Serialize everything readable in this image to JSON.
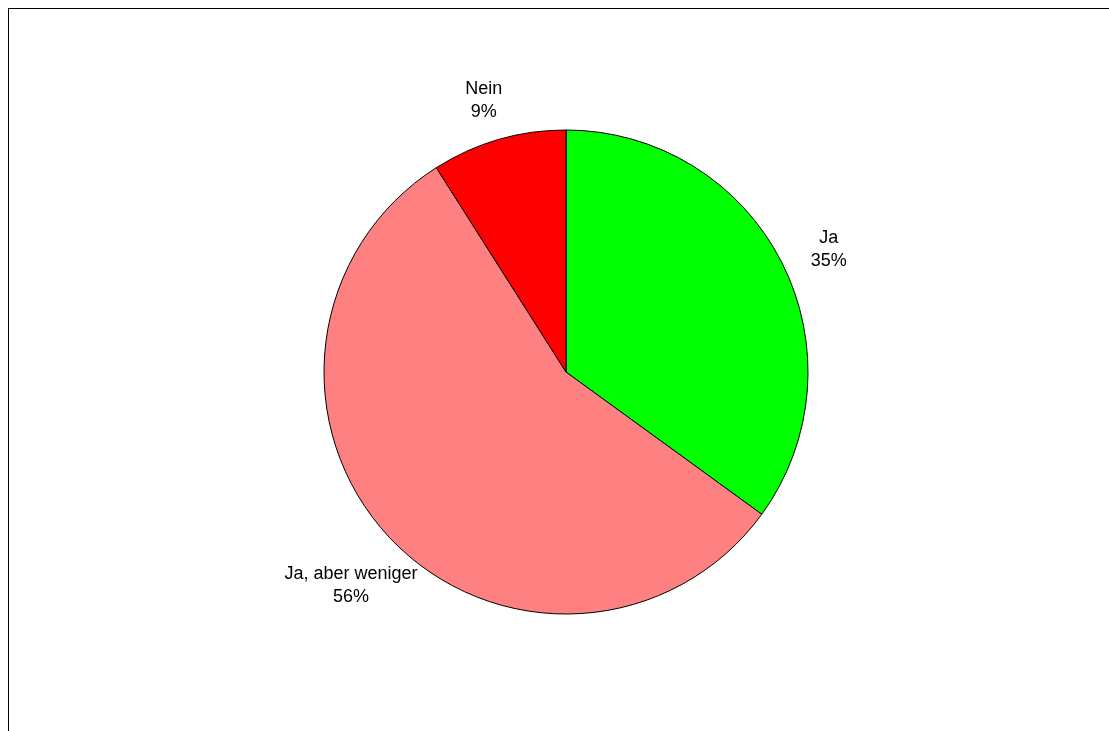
{
  "chart_data": {
    "type": "pie",
    "categories": [
      "Ja",
      "Ja, aber weniger",
      "Nein"
    ],
    "values": [
      35,
      56,
      9
    ],
    "colors": [
      "#00ff00",
      "#ff8080",
      "#ff0000"
    ],
    "value_labels": [
      "35%",
      "56%",
      "9%"
    ]
  }
}
